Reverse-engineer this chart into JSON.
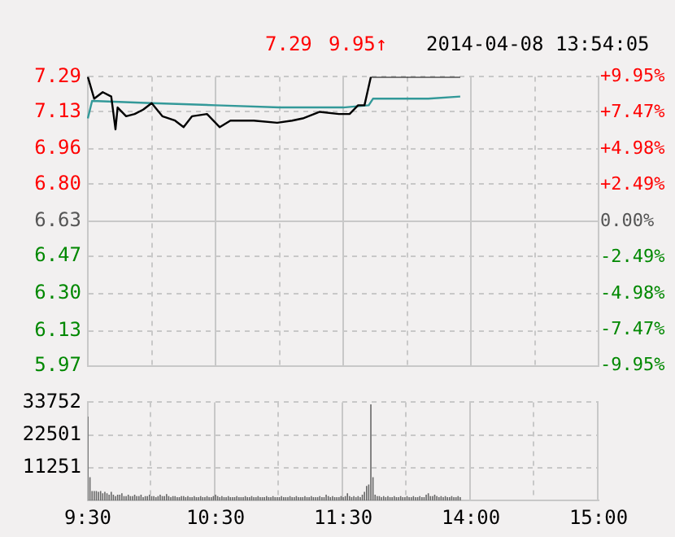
{
  "chart_data": [
    {
      "type": "line",
      "annotations": [
        "7.29",
        "9.95↑",
        "2014-04-08 13:54:05"
      ],
      "categories": [
        null,
        null,
        null,
        null,
        null,
        null,
        null,
        null,
        null,
        null,
        null,
        null,
        null,
        null,
        null,
        null,
        null,
        null,
        null,
        null,
        null,
        null,
        null,
        null,
        null,
        null,
        null,
        null,
        null,
        null,
        null,
        null,
        null,
        null,
        null,
        null,
        null,
        null,
        null,
        null,
        null,
        null,
        null,
        null,
        null,
        null,
        null,
        null,
        null,
        null,
        null,
        null,
        null,
        null,
        null,
        null,
        null,
        null,
        null,
        null,
        null,
        null,
        null,
        null,
        null,
        null,
        null,
        null,
        null,
        null,
        null,
        null,
        null,
        null,
        null,
        null,
        null,
        null,
        null,
        null,
        null,
        null,
        null,
        null,
        null,
        null,
        null,
        null,
        null,
        null,
        null,
        null,
        null,
        null,
        null,
        null,
        null,
        null,
        null,
        null,
        null,
        null,
        null,
        null,
        null,
        null,
        null,
        null,
        null,
        null,
        null,
        null,
        null,
        null,
        null,
        null,
        null,
        null,
        null,
        null,
        null,
        null,
        null,
        null,
        null,
        null,
        null,
        null,
        null,
        null,
        null,
        null,
        null,
        null,
        null,
        null,
        null,
        null,
        null,
        null,
        null,
        null,
        null,
        null,
        null,
        null,
        null,
        null,
        null,
        null,
        null,
        null,
        null,
        null,
        null,
        null,
        null,
        null,
        null,
        null,
        null,
        null,
        null,
        null,
        null,
        null,
        null,
        null,
        null,
        null,
        null,
        null,
        null,
        null,
        null,
        null,
        null,
        null,
        null,
        null,
        null,
        null,
        null,
        null,
        null,
        null,
        null,
        null,
        null,
        null,
        null,
        null,
        null,
        null,
        null,
        null,
        null,
        null,
        null,
        null,
        null,
        null,
        null,
        null,
        null,
        null,
        null,
        null,
        null,
        null,
        null,
        null,
        null,
        null,
        null,
        null,
        null,
        null,
        null,
        null,
        null,
        null,
        null,
        null,
        null,
        null,
        null,
        null,
        null,
        null,
        null,
        null,
        null,
        null,
        null,
        null,
        null,
        null,
        null,
        null,
        null
      ],
      "ylim": [
        5.97,
        7.29
      ],
      "yticks": [
        7.29,
        7.13,
        6.96,
        {
          "value": 6.8,
          "label": "6.80"
        },
        6.63,
        6.47,
        {
          "value": 6.3,
          "label": "6.30"
        },
        6.13,
        5.97
      ],
      "y2lim": [
        -9.95,
        9.95
      ],
      "y2ticks": [
        {
          "value": 9.95,
          "label": "+9.95%"
        },
        {
          "value": 7.47,
          "label": "+7.47%"
        },
        {
          "value": 4.98,
          "label": "+4.98%"
        },
        {
          "value": 2.49,
          "label": "+2.49%"
        },
        {
          "value": 0,
          "label": "0.00%"
        },
        {
          "value": -2.49,
          "label": "-2.49%"
        },
        {
          "value": -4.98,
          "label": "-4.98%"
        },
        {
          "value": -7.47,
          "label": "-7.47%"
        },
        {
          "value": -9.95,
          "label": "-9.95%"
        }
      ],
      "tick_labels": "y",
      "grid": true,
      "legend": false,
      "marker": "none",
      "series": [
        {
          "color": "#000000",
          "values": [
            7.29,
            null,
            null,
            7.19,
            null,
            null,
            null,
            7.22,
            null,
            null,
            null,
            7.2,
            null,
            7.05,
            7.15,
            null,
            null,
            null,
            7.11,
            null,
            null,
            null,
            7.12,
            null,
            null,
            null,
            7.14,
            null,
            null,
            null,
            7.17,
            null,
            null,
            null,
            null,
            7.11,
            null,
            null,
            null,
            null,
            null,
            7.09,
            null,
            null,
            null,
            7.06,
            null,
            null,
            null,
            7.11,
            null,
            null,
            null,
            null,
            null,
            null,
            7.12,
            null,
            null,
            null,
            null,
            null,
            7.06,
            null,
            null,
            null,
            null,
            7.09,
            null,
            null,
            null,
            null,
            null,
            null,
            null,
            null,
            null,
            null,
            7.09,
            null,
            null,
            null,
            null,
            null,
            null,
            null,
            null,
            null,
            null,
            7.08,
            null,
            null,
            null,
            null,
            null,
            null,
            7.09,
            null,
            null,
            null,
            null,
            7.1,
            null,
            null,
            null,
            null,
            null,
            null,
            null,
            7.13,
            null,
            null,
            null,
            null,
            null,
            null,
            null,
            null,
            7.12,
            null,
            null,
            null,
            null,
            7.12,
            null,
            null,
            null,
            7.16,
            null,
            null,
            7.16,
            null,
            null,
            7.29,
            null,
            null,
            null,
            null,
            null,
            null,
            null,
            null,
            null,
            null,
            null,
            null,
            null,
            null,
            null,
            null,
            null,
            null,
            null,
            null,
            null,
            null,
            null,
            null,
            null,
            null,
            null,
            null,
            null,
            null,
            null,
            null,
            null,
            null,
            null,
            null,
            null,
            null,
            null,
            null,
            null,
            7.29,
            null,
            null,
            null,
            null,
            null,
            null,
            null,
            null,
            null,
            null,
            null,
            null,
            null,
            null,
            null,
            null,
            null,
            null,
            null,
            null,
            null,
            null,
            null,
            null,
            null,
            null,
            null,
            null,
            null,
            null,
            null,
            null,
            null,
            null,
            null,
            null,
            null,
            null,
            null,
            null,
            null,
            null,
            null,
            null,
            null,
            null,
            null,
            null,
            null,
            null,
            null,
            null,
            null,
            null,
            null,
            null,
            null,
            null,
            null,
            null,
            null,
            null,
            null,
            null,
            null
          ]
        },
        {
          "color": "#339999",
          "values": [
            7.1,
            null,
            7.18,
            null,
            null,
            null,
            null,
            null,
            null,
            null,
            null,
            null,
            null,
            null,
            null,
            null,
            null,
            null,
            null,
            null,
            null,
            null,
            null,
            null,
            null,
            null,
            null,
            null,
            null,
            null,
            7.17,
            null,
            null,
            null,
            null,
            null,
            null,
            null,
            null,
            null,
            null,
            null,
            null,
            null,
            null,
            null,
            null,
            null,
            null,
            null,
            null,
            null,
            null,
            null,
            null,
            null,
            null,
            null,
            null,
            null,
            7.16,
            null,
            null,
            null,
            null,
            null,
            null,
            null,
            null,
            null,
            null,
            null,
            null,
            null,
            null,
            null,
            null,
            null,
            null,
            null,
            null,
            null,
            null,
            null,
            null,
            null,
            null,
            null,
            null,
            null,
            7.15,
            null,
            null,
            null,
            null,
            null,
            null,
            null,
            null,
            null,
            null,
            null,
            null,
            null,
            null,
            null,
            null,
            null,
            null,
            null,
            null,
            null,
            null,
            null,
            null,
            null,
            null,
            null,
            null,
            null,
            7.15,
            null,
            null,
            null,
            null,
            null,
            null,
            null,
            null,
            null,
            null,
            null,
            7.16,
            null,
            7.19,
            null,
            null,
            null,
            null,
            null,
            null,
            null,
            null,
            null,
            null,
            null,
            null,
            null,
            null,
            null,
            null,
            null,
            null,
            null,
            null,
            null,
            null,
            null,
            null,
            null,
            7.19,
            null,
            null,
            null,
            null,
            null,
            null,
            null,
            null,
            null,
            null,
            null,
            null,
            null,
            null,
            7.2,
            null,
            null,
            null,
            null,
            null,
            null,
            null,
            null,
            null,
            null,
            null,
            null,
            null,
            null,
            null,
            null,
            null,
            null,
            null,
            null,
            null,
            null,
            null,
            null,
            null,
            null,
            null,
            null,
            null,
            null,
            null,
            null,
            null,
            null,
            null,
            null,
            null,
            null,
            null,
            null,
            null,
            null,
            null,
            null,
            null,
            null,
            null,
            null,
            null,
            null,
            null,
            null,
            null,
            null,
            null,
            null,
            null,
            null,
            null,
            null,
            null,
            null,
            null,
            null,
            null
          ]
        }
      ]
    },
    {
      "type": "bar",
      "color": "#666666",
      "categories": [
        "9:30",
        null,
        null,
        null,
        null,
        null,
        null,
        null,
        null,
        null,
        null,
        null,
        null,
        null,
        null,
        null,
        null,
        null,
        null,
        null,
        null,
        null,
        null,
        null,
        null,
        null,
        null,
        null,
        null,
        null,
        null,
        null,
        null,
        null,
        null,
        null,
        null,
        null,
        null,
        null,
        null,
        null,
        null,
        null,
        null,
        null,
        null,
        null,
        null,
        null,
        null,
        null,
        null,
        null,
        null,
        null,
        null,
        null,
        null,
        null,
        "10:30",
        null,
        null,
        null,
        null,
        null,
        null,
        null,
        null,
        null,
        null,
        null,
        null,
        null,
        null,
        null,
        null,
        null,
        null,
        null,
        null,
        null,
        null,
        null,
        null,
        null,
        null,
        null,
        null,
        null,
        null,
        null,
        null,
        null,
        null,
        null,
        null,
        null,
        null,
        null,
        null,
        null,
        null,
        null,
        null,
        null,
        null,
        null,
        null,
        null,
        null,
        null,
        null,
        null,
        null,
        null,
        null,
        null,
        null,
        null,
        "11:30",
        null,
        null,
        null,
        null,
        null,
        null,
        null,
        null,
        null,
        null,
        null,
        null,
        null,
        null,
        null,
        null,
        null,
        null,
        null,
        null,
        null,
        null,
        null,
        null,
        null,
        null,
        null,
        null,
        null,
        null,
        null,
        null,
        null,
        null,
        null,
        null,
        null,
        null,
        null,
        null,
        null,
        null,
        null,
        null,
        null,
        null,
        null,
        null,
        null,
        null,
        null,
        null,
        null,
        null,
        null,
        null,
        null,
        null,
        null,
        "14:00",
        null,
        null,
        null,
        null,
        null,
        null,
        null,
        null,
        null,
        null,
        null,
        null,
        null,
        null,
        null,
        null,
        null,
        null,
        null,
        null,
        null,
        null,
        null,
        null,
        null,
        null,
        null,
        null,
        null,
        null,
        null,
        null,
        null,
        null,
        null,
        null,
        null,
        null,
        null,
        null,
        null,
        null,
        null,
        null,
        null,
        null,
        null,
        null,
        null,
        null,
        null,
        null,
        null,
        null,
        null,
        null,
        null,
        null,
        null,
        "15:00"
      ],
      "ylim": [
        0,
        33752
      ],
      "yticks": [
        11251,
        22501,
        33752
      ],
      "grid": true,
      "legend": false,
      "values": [
        28800,
        8000,
        3300,
        3300,
        3300,
        3000,
        3300,
        2500,
        3000,
        2500,
        2000,
        3000,
        2000,
        1500,
        2000,
        2000,
        2500,
        1500,
        1500,
        2000,
        1500,
        1500,
        2000,
        1500,
        1500,
        2000,
        1200,
        1500,
        1500,
        2000,
        1500,
        1500,
        1200,
        1500,
        2000,
        1500,
        1500,
        2200,
        1500,
        1200,
        1500,
        1500,
        1200,
        1200,
        1500,
        1500,
        1200,
        1500,
        1200,
        1200,
        1500,
        1200,
        1200,
        1500,
        1200,
        1200,
        1500,
        1200,
        1200,
        1500,
        2000,
        1500,
        1200,
        1500,
        1200,
        1200,
        1500,
        1200,
        1200,
        1200,
        1500,
        1200,
        1200,
        1200,
        1500,
        1200,
        1200,
        1500,
        1200,
        1200,
        1500,
        1200,
        1200,
        1200,
        1500,
        1200,
        1200,
        1500,
        1200,
        1200,
        1200,
        1500,
        1200,
        1200,
        1200,
        1500,
        1200,
        1200,
        1500,
        1200,
        1200,
        1200,
        1500,
        1200,
        1200,
        1500,
        1200,
        1200,
        1200,
        1500,
        1200,
        1200,
        2000,
        1500,
        1200,
        1500,
        1200,
        1200,
        1200,
        1500,
        1200,
        1500,
        2500,
        1500,
        1200,
        1500,
        1200,
        1500,
        1200,
        2000,
        3000,
        5000,
        5500,
        33000,
        8000,
        2000,
        1500,
        1500,
        1200,
        1500,
        1200,
        1500,
        1200,
        1200,
        1500,
        1200,
        1200,
        1500,
        1200,
        1200,
        1500,
        1200,
        1200,
        1500,
        1200,
        1200,
        1500,
        1200,
        1200,
        2000,
        2500,
        1500,
        1500,
        2000,
        1500,
        1200,
        1500,
        1200,
        1500,
        1200,
        1200,
        1500,
        1200,
        1200,
        1500,
        1200,
        null,
        null,
        null,
        null,
        null,
        null,
        null,
        null,
        null,
        null,
        null,
        null,
        null,
        null,
        null,
        null,
        null,
        null,
        null,
        null,
        null,
        null,
        null,
        null,
        null,
        null,
        null,
        null,
        null,
        null,
        null,
        null,
        null,
        null,
        null,
        null,
        null,
        null,
        null,
        null,
        null,
        null,
        null,
        null,
        null,
        null,
        null,
        null,
        null,
        null,
        null,
        null,
        null,
        null,
        null,
        null,
        null,
        null,
        null,
        null,
        null,
        null,
        null,
        null,
        null
      ]
    }
  ]
}
